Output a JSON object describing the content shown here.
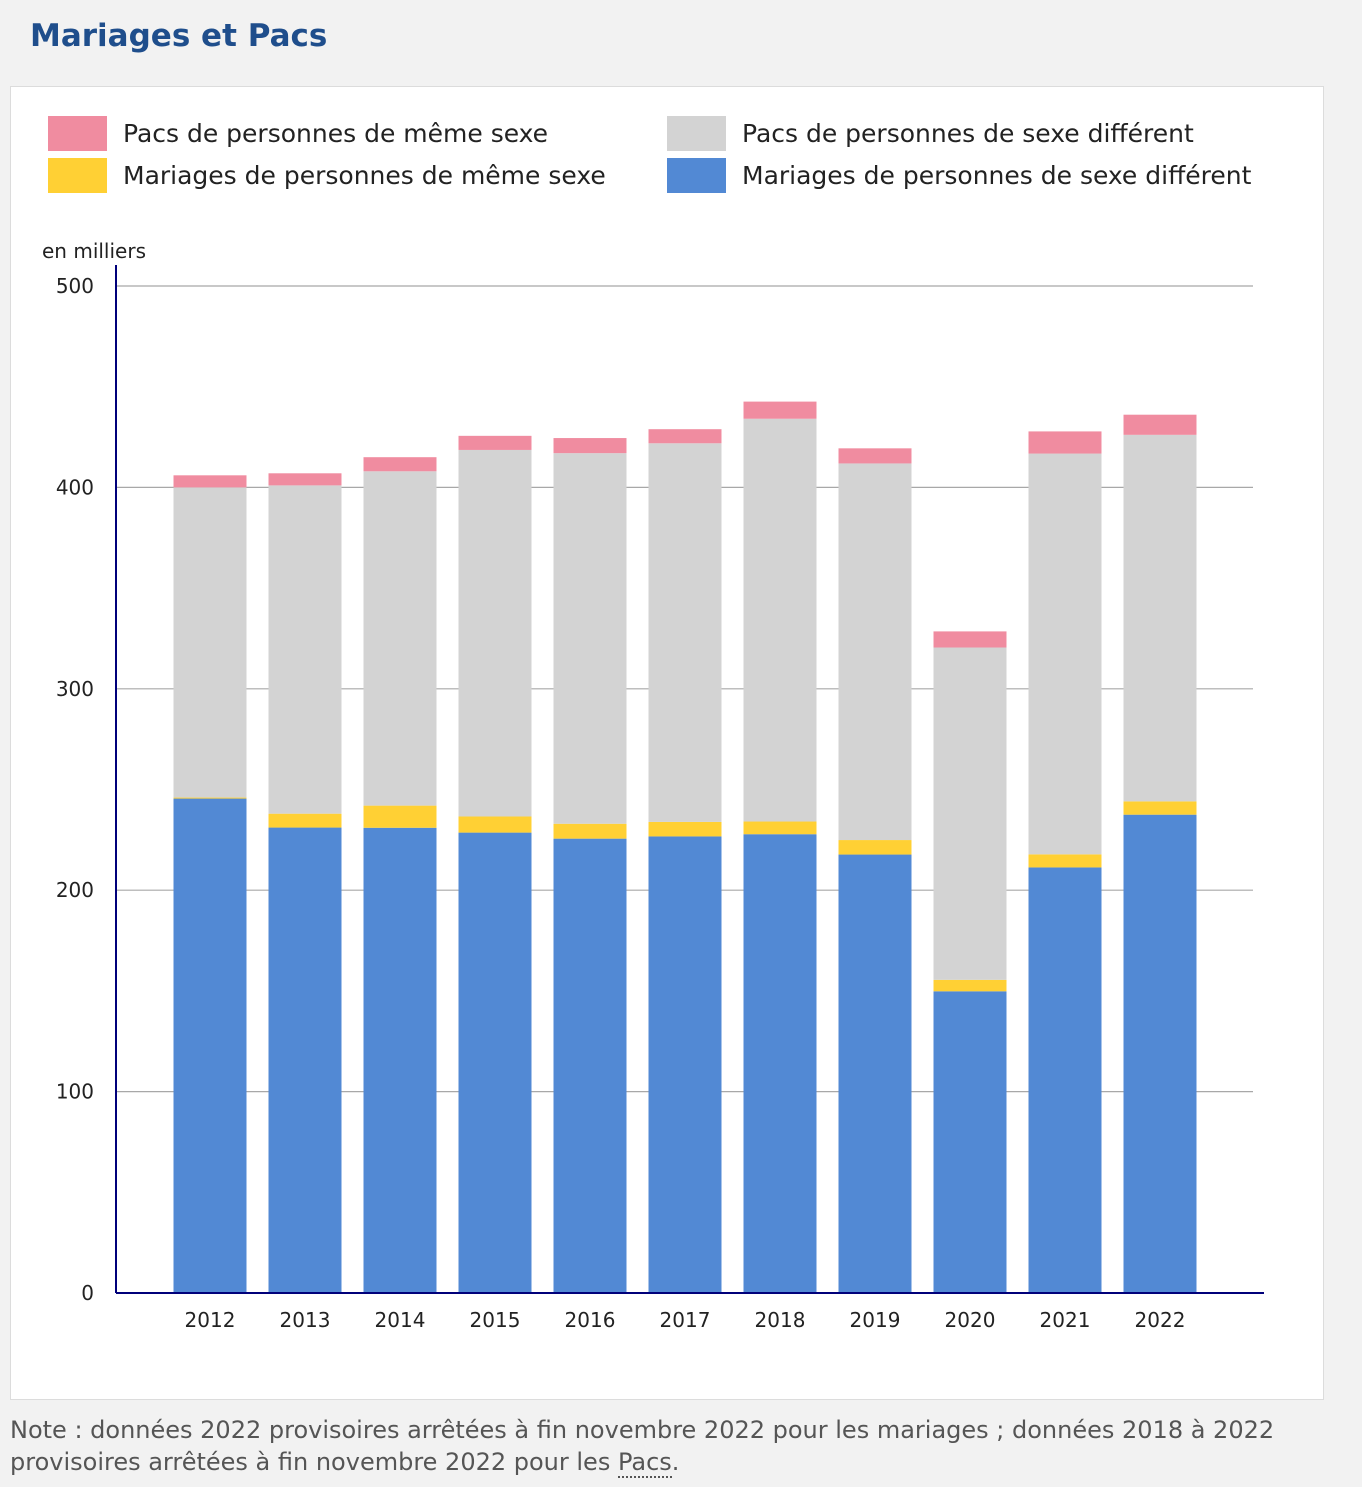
{
  "page": {
    "title": "Mariages et Pacs",
    "note_before": "Note : données 2022 provisoires arrêtées à fin novembre 2022 pour les mariages ; données 2018 à 2022 provisoires arrêtées à fin novembre 2022 pour les ",
    "note_abbr": "Pacs",
    "note_after": "."
  },
  "colors": {
    "mariages_sexe_different": "#5289d4",
    "mariages_meme_sexe": "#ffd034",
    "pacs_sexe_different": "#d3d3d3",
    "pacs_meme_sexe": "#f08ca0",
    "axis": "#00007a",
    "grid": "#a8a8a8"
  },
  "chart_data": {
    "type": "bar",
    "stacked": true,
    "title": "",
    "xlabel": "",
    "ylabel": "en milliers",
    "ylim": [
      0,
      500
    ],
    "yticks": [
      0,
      100,
      200,
      300,
      400,
      500
    ],
    "grid": true,
    "legend_position": "top",
    "categories": [
      "2012",
      "2013",
      "2014",
      "2015",
      "2016",
      "2017",
      "2018",
      "2019",
      "2020",
      "2021",
      "2022"
    ],
    "series": [
      {
        "name": "Mariages de personnes de sexe différent",
        "color_key": "mariages_sexe_different",
        "values": [
          245.5,
          231.1,
          231.0,
          228.6,
          225.6,
          226.7,
          227.8,
          217.7,
          149.8,
          211.3,
          237.5
        ]
      },
      {
        "name": "Mariages de personnes de même sexe",
        "color_key": "mariages_meme_sexe",
        "values": [
          0.5,
          6.9,
          11.0,
          8.0,
          7.4,
          7.2,
          6.3,
          7.2,
          5.7,
          6.5,
          6.6
        ]
      },
      {
        "name": "Pacs de personnes de sexe différent",
        "color_key": "pacs_sexe_different",
        "values": [
          154.0,
          163.0,
          166.0,
          182.0,
          184.0,
          188.0,
          200.0,
          187.0,
          165.0,
          199.0,
          182.0
        ]
      },
      {
        "name": "Pacs de personnes de même sexe",
        "color_key": "pacs_meme_sexe",
        "values": [
          6.0,
          6.0,
          7.0,
          7.0,
          7.5,
          7.0,
          8.5,
          7.5,
          8.0,
          11.0,
          10.0
        ]
      }
    ],
    "legend_order": [
      "Pacs de personnes de même sexe",
      "Pacs de personnes de sexe différent",
      "Mariages de personnes de même sexe",
      "Mariages de personnes de sexe différent"
    ]
  }
}
